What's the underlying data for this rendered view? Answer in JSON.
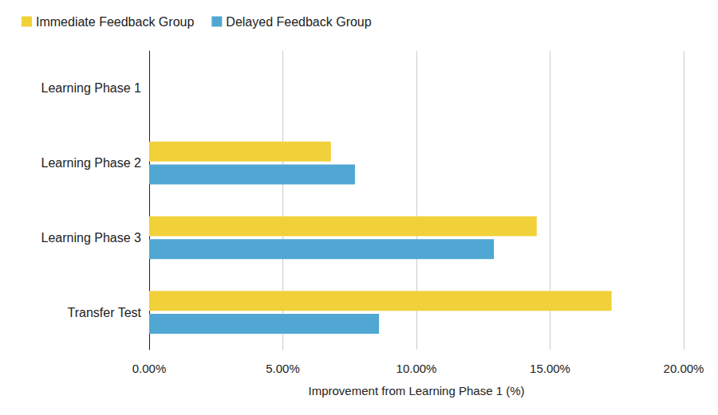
{
  "chart_data": {
    "type": "bar",
    "orientation": "horizontal",
    "categories": [
      "Learning Phase 1",
      "Learning Phase 2",
      "Learning Phase 3",
      "Transfer Test"
    ],
    "series": [
      {
        "name": "Immediate Feedback Group",
        "color": "#f1d13a",
        "values": [
          0,
          6.8,
          14.5,
          17.3
        ]
      },
      {
        "name": "Delayed Feedback Group",
        "color": "#50a7d3",
        "values": [
          0,
          7.7,
          12.9,
          8.6
        ]
      }
    ],
    "xlabel": "Improvement from Learning Phase 1 (%)",
    "xlim": [
      0,
      20
    ],
    "xticks": [
      {
        "value": 0,
        "label": "0.00%"
      },
      {
        "value": 5,
        "label": "5.00%"
      },
      {
        "value": 10,
        "label": "10.00%"
      },
      {
        "value": 15,
        "label": "15.00%"
      },
      {
        "value": 20,
        "label": "20.00%"
      }
    ],
    "grid": true,
    "legend": "top-left"
  }
}
